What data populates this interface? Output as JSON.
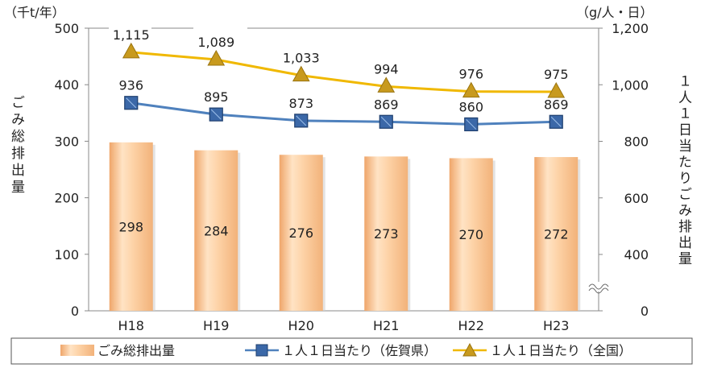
{
  "chart_data": {
    "type": "bar+line",
    "categories": [
      "H18",
      "H19",
      "H20",
      "H21",
      "H22",
      "H23"
    ],
    "left_unit": "（千t/年）",
    "right_unit": "（g/人・日）",
    "left_axis_label": "ごみ総排出量",
    "right_axis_label": "１人１日当たりごみ排出量",
    "left_ticks": [
      "0",
      "100",
      "200",
      "300",
      "400",
      "500"
    ],
    "right_ticks": [
      "0",
      "400",
      "600",
      "800",
      "1,000",
      "1,200"
    ],
    "left_ylim": [
      0,
      500
    ],
    "right_ylim": [
      0,
      1200
    ],
    "right_axis_broken": true,
    "bar_series": {
      "name": "ごみ総排出量",
      "values": [
        298,
        284,
        276,
        273,
        270,
        272
      ],
      "labels": [
        "298",
        "284",
        "276",
        "273",
        "270",
        "272"
      ],
      "color": "#F7C58E"
    },
    "line_series": [
      {
        "name": "１人１日当たり（佐賀県）",
        "values": [
          936,
          895,
          873,
          869,
          860,
          869
        ],
        "labels": [
          "936",
          "895",
          "873",
          "869",
          "860",
          "869"
        ],
        "color": "#4F81BD",
        "marker": "square"
      },
      {
        "name": "１人１日当たり（全国）",
        "values": [
          1115,
          1089,
          1033,
          994,
          976,
          975
        ],
        "labels": [
          "1,115",
          "1,089",
          "1,033",
          "994",
          "976",
          "975"
        ],
        "color": "#F0B800",
        "marker": "triangle"
      }
    ],
    "grid": false,
    "legend_position": "bottom"
  }
}
